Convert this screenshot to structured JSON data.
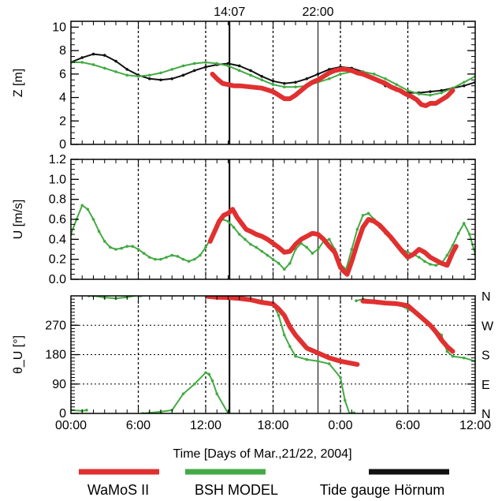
{
  "chart_data": {
    "type": "line",
    "top_annotations": [
      "14:07",
      "22:00"
    ],
    "x_axis": {
      "label": "Time [Days of Mar.,21/22, 2004]",
      "ticks": [
        0,
        6,
        12,
        18,
        24,
        30,
        36
      ],
      "tick_labels": [
        "00:00",
        "6:00",
        "12:00",
        "18:00",
        "0:00",
        "6:00",
        "12:00"
      ],
      "range": [
        0,
        36
      ],
      "dotted_vlines": [
        6,
        12,
        18,
        24,
        30
      ],
      "solid_vlines": [
        14.12,
        22
      ]
    },
    "legend": [
      {
        "label": "WaMoS II",
        "color": "#e03030"
      },
      {
        "label": "BSH MODEL",
        "color": "#44aa44"
      },
      {
        "label": "Tide gauge Hörnum",
        "color": "#111111"
      }
    ],
    "panels": [
      {
        "id": "z",
        "ylabel": "Z [m]",
        "ylim": [
          0,
          10.5
        ],
        "yticks": [
          0,
          2,
          4,
          6,
          8,
          10
        ],
        "ytick_labels": [
          "0",
          "2",
          "4",
          "6",
          "8",
          "10"
        ],
        "series": [
          {
            "key": "tide",
            "color": "#111111",
            "x": [
              0,
              1,
              2,
              3,
              4,
              5,
              6,
              7,
              8,
              9,
              10,
              11,
              12,
              13,
              14,
              15,
              16,
              17,
              18,
              19,
              20,
              21,
              22,
              23,
              24,
              25,
              26,
              27,
              28,
              29,
              30,
              31,
              32,
              33,
              34,
              35,
              36
            ],
            "y": [
              7.0,
              7.4,
              7.7,
              7.6,
              7.1,
              6.4,
              5.9,
              5.6,
              5.5,
              5.6,
              5.9,
              6.3,
              6.6,
              6.8,
              6.9,
              6.7,
              6.3,
              5.8,
              5.4,
              5.2,
              5.3,
              5.6,
              6.0,
              6.4,
              6.6,
              6.5,
              6.2,
              5.6,
              5.0,
              4.6,
              4.4,
              4.4,
              4.5,
              4.6,
              4.8,
              5.0,
              5.3
            ]
          },
          {
            "key": "model",
            "color": "#44aa44",
            "x": [
              0,
              1,
              2,
              3,
              4,
              5,
              6,
              7,
              8,
              9,
              10,
              11,
              12,
              13,
              14,
              15,
              16,
              17,
              18,
              19,
              20,
              21,
              22,
              23,
              24,
              25,
              26,
              27,
              28,
              29,
              30,
              31,
              32,
              33,
              34,
              35,
              36
            ],
            "y": [
              7.0,
              7.0,
              6.8,
              6.5,
              6.2,
              5.9,
              5.8,
              5.9,
              6.1,
              6.4,
              6.7,
              6.9,
              7.0,
              6.9,
              6.7,
              6.3,
              5.9,
              5.5,
              5.1,
              4.9,
              4.9,
              5.0,
              5.3,
              5.6,
              6.0,
              6.2,
              6.2,
              6.0,
              5.6,
              5.1,
              4.6,
              4.3,
              4.2,
              4.4,
              4.8,
              5.3,
              5.8
            ]
          },
          {
            "key": "wamos",
            "color": "#e03030",
            "x": [
              12.6,
              13.0,
              13.5,
              14.0,
              14.5,
              15.0,
              16.0,
              17.0,
              18.0,
              19.0,
              19.5,
              20.0,
              20.5,
              21.0,
              21.5,
              22.0,
              22.5,
              23.0,
              23.5,
              24.0,
              24.5,
              25.0,
              25.5,
              26.0,
              26.5,
              27.0,
              27.5,
              28.0,
              28.5,
              29.0,
              29.3,
              29.8,
              30.3,
              30.8,
              31.2,
              31.6,
              32.0,
              32.5,
              33.0,
              33.5,
              34.0
            ],
            "y": [
              6.0,
              5.6,
              5.2,
              5.1,
              5.0,
              5.0,
              4.9,
              4.8,
              4.5,
              3.9,
              3.9,
              4.2,
              4.6,
              5.0,
              5.3,
              5.5,
              5.8,
              6.1,
              6.3,
              6.4,
              6.4,
              6.3,
              6.1,
              6.0,
              5.8,
              5.6,
              5.4,
              5.2,
              4.9,
              4.7,
              4.6,
              4.3,
              4.1,
              3.8,
              3.4,
              3.3,
              3.5,
              3.5,
              3.8,
              4.1,
              4.6
            ]
          }
        ]
      },
      {
        "id": "u",
        "ylabel": "U [m/s]",
        "ylim": [
          0,
          1.2
        ],
        "yticks": [
          0,
          0.2,
          0.4,
          0.6,
          0.8,
          1.0,
          1.2
        ],
        "ytick_labels": [
          "0.0",
          "0.2",
          "0.4",
          "0.6",
          "0.8",
          "1.0",
          "1.2"
        ],
        "series": [
          {
            "key": "model",
            "color": "#44aa44",
            "x": [
              0,
              0.5,
              1,
              1.5,
              2,
              2.5,
              3,
              3.5,
              4,
              4.5,
              5,
              5.5,
              6,
              6.5,
              7,
              7.5,
              8,
              8.5,
              9,
              9.5,
              10,
              10.5,
              11,
              11.5,
              12,
              12.5,
              13,
              13.5,
              14,
              14.5,
              15,
              15.5,
              16,
              16.5,
              17,
              17.5,
              18,
              18.5,
              19,
              19.5,
              20,
              20.5,
              21,
              21.5,
              22,
              22.5,
              23,
              23.5,
              24,
              24.5,
              25,
              25.5,
              26,
              26.5,
              27,
              27.5,
              28,
              28.5,
              29,
              29.5,
              30,
              30.5,
              31,
              31.5,
              32,
              32.5,
              33,
              33.5,
              34,
              34.5,
              35,
              35.5,
              36
            ],
            "y": [
              0.45,
              0.6,
              0.74,
              0.7,
              0.6,
              0.48,
              0.38,
              0.32,
              0.3,
              0.31,
              0.33,
              0.33,
              0.3,
              0.26,
              0.22,
              0.2,
              0.2,
              0.22,
              0.24,
              0.23,
              0.2,
              0.18,
              0.2,
              0.24,
              0.32,
              0.42,
              0.54,
              0.6,
              0.58,
              0.52,
              0.45,
              0.4,
              0.35,
              0.32,
              0.28,
              0.24,
              0.2,
              0.16,
              0.1,
              0.16,
              0.3,
              0.36,
              0.32,
              0.26,
              0.3,
              0.38,
              0.4,
              0.3,
              0.15,
              0.1,
              0.3,
              0.5,
              0.64,
              0.66,
              0.6,
              0.52,
              0.46,
              0.4,
              0.34,
              0.3,
              0.27,
              0.25,
              0.22,
              0.18,
              0.15,
              0.14,
              0.16,
              0.24,
              0.34,
              0.46,
              0.56,
              0.45,
              0.25
            ]
          },
          {
            "key": "wamos",
            "color": "#e03030",
            "x": [
              12.4,
              12.8,
              13.2,
              13.6,
              14.0,
              14.4,
              14.8,
              15.2,
              15.6,
              16.0,
              16.5,
              17.0,
              17.5,
              18.0,
              18.5,
              19.0,
              19.5,
              20.0,
              20.5,
              21.0,
              21.5,
              22.0,
              22.5,
              23.0,
              23.5,
              24.0,
              24.3,
              24.6,
              25.0,
              25.5,
              26.0,
              26.5,
              27.0,
              27.5,
              28.0,
              28.5,
              29.0,
              29.5,
              30.0,
              30.5,
              31.0,
              31.5,
              32.0,
              32.5,
              33.0,
              33.5,
              34.0,
              34.3
            ],
            "y": [
              0.38,
              0.48,
              0.58,
              0.64,
              0.66,
              0.7,
              0.62,
              0.56,
              0.5,
              0.48,
              0.45,
              0.43,
              0.4,
              0.36,
              0.32,
              0.27,
              0.28,
              0.35,
              0.4,
              0.43,
              0.46,
              0.45,
              0.4,
              0.33,
              0.27,
              0.12,
              0.08,
              0.05,
              0.18,
              0.36,
              0.52,
              0.6,
              0.58,
              0.54,
              0.48,
              0.42,
              0.35,
              0.28,
              0.22,
              0.25,
              0.3,
              0.27,
              0.22,
              0.19,
              0.16,
              0.14,
              0.27,
              0.33
            ]
          }
        ]
      },
      {
        "id": "dir",
        "ylabel": "θ_U [°]",
        "ylim": [
          0,
          360
        ],
        "yticks": [
          0,
          90,
          180,
          270
        ],
        "ytick_labels": [
          "0",
          "90",
          "180",
          "270"
        ],
        "right_labels": [
          {
            "value": 360,
            "text": "N"
          },
          {
            "value": 270,
            "text": "W"
          },
          {
            "value": 180,
            "text": "S"
          },
          {
            "value": 90,
            "text": "E"
          },
          {
            "value": 0,
            "text": "N"
          }
        ],
        "dotted_hlines": [
          90,
          180,
          270
        ],
        "series": [
          {
            "key": "model",
            "color": "#44aa44",
            "x": [
              0,
              1,
              1.4,
              1.6,
              2,
              3,
              4,
              5,
              6,
              6.2,
              6.4,
              7,
              8,
              9,
              10,
              11,
              12,
              12.3,
              12.6,
              13,
              14,
              15,
              16,
              17,
              18,
              18.5,
              19,
              19.5,
              20,
              21,
              22,
              23,
              24,
              24.4,
              24.8,
              25.2,
              25.4,
              26,
              27,
              28,
              29,
              30,
              31,
              32,
              33,
              33.5,
              34,
              35,
              36
            ],
            "y": [
              10,
              8,
              10,
              360,
              360,
              355,
              352,
              356,
              362,
              360,
              0,
              2,
              5,
              10,
              60,
              90,
              125,
              120,
              100,
              60,
              0,
              358,
              352,
              345,
              335,
              300,
              240,
              205,
              175,
              165,
              160,
              152,
              110,
              40,
              0,
              2,
              345,
              350,
              345,
              340,
              335,
              320,
              300,
              270,
              240,
              190,
              175,
              170,
              160
            ]
          },
          {
            "key": "wamos",
            "color": "#e03030",
            "x": [
              12.2,
              13,
              14,
              15,
              16,
              17,
              18,
              18.5,
              19,
              19.5,
              20,
              20.5,
              21,
              22,
              23,
              24,
              25.5,
              26,
              27,
              28,
              29,
              30,
              30.5,
              31,
              31.5,
              32,
              32.5,
              33,
              33.5,
              34
            ],
            "y": [
              358,
              356,
              355,
              352,
              348,
              340,
              335,
              320,
              300,
              265,
              240,
              220,
              200,
              185,
              170,
              160,
              150,
              344,
              342,
              338,
              336,
              330,
              315,
              300,
              285,
              270,
              250,
              225,
              205,
              190
            ]
          }
        ]
      }
    ]
  }
}
